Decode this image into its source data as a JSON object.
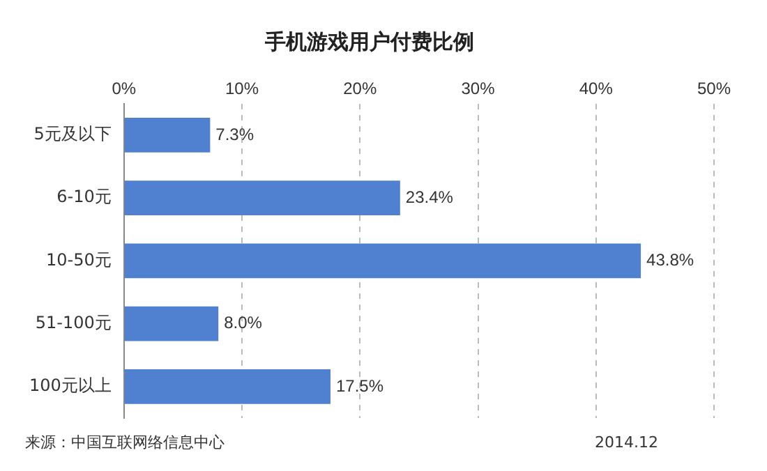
{
  "chart_data": {
    "type": "bar",
    "orientation": "horizontal",
    "title": "手机游戏用户付费比例",
    "categories": [
      "5元及以下",
      "6-10元",
      "10-50元",
      "51-100元",
      "100元以上"
    ],
    "values": [
      7.3,
      23.4,
      43.8,
      8.0,
      17.5
    ],
    "value_labels": [
      "7.3%",
      "23.4%",
      "43.8%",
      "8.0%",
      "17.5%"
    ],
    "color": "#4f81d0",
    "xlim": [
      0,
      50
    ],
    "xticks": [
      {
        "value": 0,
        "label": "0%"
      },
      {
        "value": 10,
        "label": "10%"
      },
      {
        "value": 20,
        "label": "20%"
      },
      {
        "value": 30,
        "label": "30%"
      },
      {
        "value": 40,
        "label": "40%"
      },
      {
        "value": 50,
        "label": "50%"
      }
    ],
    "grid": "x",
    "legend": false,
    "annotations": [
      "来源：中国互联网络信息中心",
      "2014.12"
    ]
  }
}
